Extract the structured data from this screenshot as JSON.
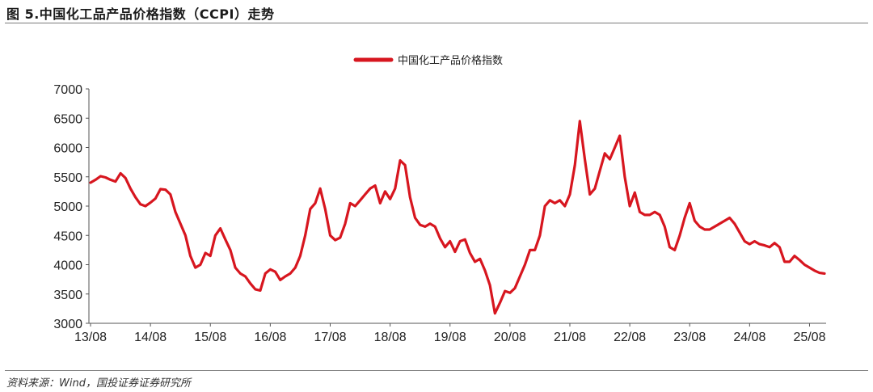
{
  "figure": {
    "title": "图 5.中国化工品产品价格指数（CCPI）走势",
    "source": "资料来源：Wind，国投证券证券研究所"
  },
  "colors": {
    "series": "#d7161f",
    "axis": "#555555",
    "rule": "#7a7a7a"
  },
  "chart_data": {
    "type": "line",
    "title": "",
    "xlabel": "",
    "ylabel": "",
    "ylim": [
      3000,
      7000
    ],
    "yticks": [
      3000,
      3500,
      4000,
      4500,
      5000,
      5500,
      6000,
      6500,
      7000
    ],
    "xlim": [
      "2013-08",
      "2025-11"
    ],
    "xticks": [
      "13/08",
      "14/08",
      "15/08",
      "16/08",
      "17/08",
      "18/08",
      "19/08",
      "20/08",
      "21/08",
      "22/08",
      "23/08",
      "24/08",
      "25/08"
    ],
    "grid": false,
    "legend": "top-center",
    "series": [
      {
        "name": "中国化工产品价格指数",
        "points": [
          [
            "2013-08",
            5400
          ],
          [
            "2013-09",
            5450
          ],
          [
            "2013-10",
            5510
          ],
          [
            "2013-11",
            5490
          ],
          [
            "2013-12",
            5450
          ],
          [
            "2014-01",
            5420
          ],
          [
            "2014-02",
            5560
          ],
          [
            "2014-03",
            5480
          ],
          [
            "2014-04",
            5300
          ],
          [
            "2014-05",
            5150
          ],
          [
            "2014-06",
            5030
          ],
          [
            "2014-07",
            5000
          ],
          [
            "2014-08",
            5060
          ],
          [
            "2014-09",
            5130
          ],
          [
            "2014-10",
            5290
          ],
          [
            "2014-11",
            5280
          ],
          [
            "2014-12",
            5200
          ],
          [
            "2015-01",
            4900
          ],
          [
            "2015-02",
            4700
          ],
          [
            "2015-03",
            4500
          ],
          [
            "2015-04",
            4150
          ],
          [
            "2015-05",
            3950
          ],
          [
            "2015-06",
            4000
          ],
          [
            "2015-07",
            4200
          ],
          [
            "2015-08",
            4150
          ],
          [
            "2015-09",
            4500
          ],
          [
            "2015-10",
            4620
          ],
          [
            "2015-11",
            4430
          ],
          [
            "2015-12",
            4250
          ],
          [
            "2016-01",
            3950
          ],
          [
            "2016-02",
            3850
          ],
          [
            "2016-03",
            3800
          ],
          [
            "2016-04",
            3680
          ],
          [
            "2016-05",
            3580
          ],
          [
            "2016-06",
            3560
          ],
          [
            "2016-07",
            3850
          ],
          [
            "2016-08",
            3920
          ],
          [
            "2016-09",
            3880
          ],
          [
            "2016-10",
            3740
          ],
          [
            "2016-11",
            3800
          ],
          [
            "2016-12",
            3850
          ],
          [
            "2017-01",
            3950
          ],
          [
            "2017-02",
            4150
          ],
          [
            "2017-03",
            4500
          ],
          [
            "2017-04",
            4950
          ],
          [
            "2017-05",
            5050
          ],
          [
            "2017-06",
            5300
          ],
          [
            "2017-07",
            4950
          ],
          [
            "2017-08",
            4500
          ],
          [
            "2017-09",
            4420
          ],
          [
            "2017-10",
            4460
          ],
          [
            "2017-11",
            4700
          ],
          [
            "2017-12",
            5050
          ],
          [
            "2018-01",
            5000
          ],
          [
            "2018-02",
            5100
          ],
          [
            "2018-03",
            5200
          ],
          [
            "2018-04",
            5300
          ],
          [
            "2018-05",
            5350
          ],
          [
            "2018-06",
            5050
          ],
          [
            "2018-07",
            5250
          ],
          [
            "2018-08",
            5120
          ],
          [
            "2018-09",
            5300
          ],
          [
            "2018-10",
            5780
          ],
          [
            "2018-11",
            5700
          ],
          [
            "2018-12",
            5150
          ],
          [
            "2019-01",
            4800
          ],
          [
            "2019-02",
            4680
          ],
          [
            "2019-03",
            4650
          ],
          [
            "2019-04",
            4700
          ],
          [
            "2019-05",
            4650
          ],
          [
            "2019-06",
            4450
          ],
          [
            "2019-07",
            4300
          ],
          [
            "2019-08",
            4400
          ],
          [
            "2019-09",
            4220
          ],
          [
            "2019-10",
            4400
          ],
          [
            "2019-11",
            4430
          ],
          [
            "2019-12",
            4200
          ],
          [
            "2020-01",
            4050
          ],
          [
            "2020-02",
            4100
          ],
          [
            "2020-03",
            3900
          ],
          [
            "2020-04",
            3650
          ],
          [
            "2020-05",
            3170
          ],
          [
            "2020-06",
            3350
          ],
          [
            "2020-07",
            3550
          ],
          [
            "2020-08",
            3520
          ],
          [
            "2020-09",
            3600
          ],
          [
            "2020-10",
            3800
          ],
          [
            "2020-11",
            4000
          ],
          [
            "2020-12",
            4250
          ],
          [
            "2021-01",
            4250
          ],
          [
            "2021-02",
            4500
          ],
          [
            "2021-03",
            5000
          ],
          [
            "2021-04",
            5100
          ],
          [
            "2021-05",
            5050
          ],
          [
            "2021-06",
            5100
          ],
          [
            "2021-07",
            5000
          ],
          [
            "2021-08",
            5200
          ],
          [
            "2021-09",
            5700
          ],
          [
            "2021-10",
            6450
          ],
          [
            "2021-11",
            5800
          ],
          [
            "2021-12",
            5200
          ],
          [
            "2022-01",
            5300
          ],
          [
            "2022-02",
            5600
          ],
          [
            "2022-03",
            5900
          ],
          [
            "2022-04",
            5800
          ],
          [
            "2022-05",
            6000
          ],
          [
            "2022-06",
            6200
          ],
          [
            "2022-07",
            5500
          ],
          [
            "2022-08",
            5000
          ],
          [
            "2022-09",
            5230
          ],
          [
            "2022-10",
            4900
          ],
          [
            "2022-11",
            4850
          ],
          [
            "2022-12",
            4850
          ],
          [
            "2023-01",
            4900
          ],
          [
            "2023-02",
            4850
          ],
          [
            "2023-03",
            4650
          ],
          [
            "2023-04",
            4300
          ],
          [
            "2023-05",
            4250
          ],
          [
            "2023-06",
            4500
          ],
          [
            "2023-07",
            4800
          ],
          [
            "2023-08",
            5050
          ],
          [
            "2023-09",
            4750
          ],
          [
            "2023-10",
            4650
          ],
          [
            "2023-11",
            4600
          ],
          [
            "2023-12",
            4600
          ],
          [
            "2024-01",
            4650
          ],
          [
            "2024-02",
            4700
          ],
          [
            "2024-03",
            4750
          ],
          [
            "2024-04",
            4800
          ],
          [
            "2024-05",
            4700
          ],
          [
            "2024-06",
            4550
          ],
          [
            "2024-07",
            4400
          ],
          [
            "2024-08",
            4350
          ],
          [
            "2024-09",
            4400
          ],
          [
            "2024-10",
            4350
          ],
          [
            "2024-11",
            4330
          ],
          [
            "2024-12",
            4300
          ],
          [
            "2025-01",
            4370
          ],
          [
            "2025-02",
            4300
          ],
          [
            "2025-03",
            4050
          ],
          [
            "2025-04",
            4050
          ],
          [
            "2025-05",
            4150
          ],
          [
            "2025-06",
            4080
          ],
          [
            "2025-07",
            4000
          ],
          [
            "2025-08",
            3950
          ],
          [
            "2025-09",
            3900
          ],
          [
            "2025-10",
            3860
          ],
          [
            "2025-11",
            3850
          ]
        ]
      }
    ]
  }
}
